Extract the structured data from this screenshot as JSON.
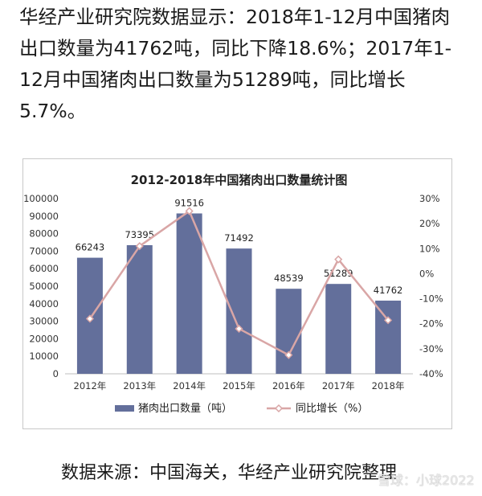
{
  "article": {
    "text": "华经产业研究院数据显示：2018年1-12月中国猪肉出口数量为41762吨，同比下降18.6%；2017年1-12月中国猪肉出口数量为51289吨，同比增长5.7%。"
  },
  "chart_data": {
    "type": "bar",
    "title": "2012-2018年中国猪肉出口数量统计图",
    "categories": [
      "2012年",
      "2013年",
      "2014年",
      "2015年",
      "2016年",
      "2017年",
      "2018年"
    ],
    "series": [
      {
        "name": "猪肉出口数量（吨）",
        "type": "bar",
        "axis": "left",
        "color": "#636f9b",
        "values": [
          66243,
          73395,
          91516,
          71492,
          48539,
          51289,
          41762
        ],
        "labels": [
          "66243",
          "73395",
          "91516",
          "71492",
          "48539",
          "51289",
          "41762"
        ]
      },
      {
        "name": "同比增长（%）",
        "type": "line",
        "axis": "right",
        "color": "#d9a6a6",
        "values": [
          -18,
          11,
          25,
          -22,
          -32.5,
          5.7,
          -18.6
        ]
      }
    ],
    "left_axis": {
      "ylim": [
        0,
        100000
      ],
      "ticks": [
        "0",
        "10000",
        "20000",
        "30000",
        "40000",
        "50000",
        "60000",
        "70000",
        "80000",
        "90000",
        "100000"
      ]
    },
    "right_axis": {
      "ylim": [
        -40,
        30
      ],
      "ticks": [
        "-40%",
        "-30%",
        "-20%",
        "-10%",
        "0%",
        "10%",
        "20%",
        "30%"
      ]
    },
    "legend_position": "bottom"
  },
  "source": {
    "text": "数据来源：中国海关，华经产业研究院整理"
  },
  "watermark": {
    "text": "雪球：小球2022"
  }
}
